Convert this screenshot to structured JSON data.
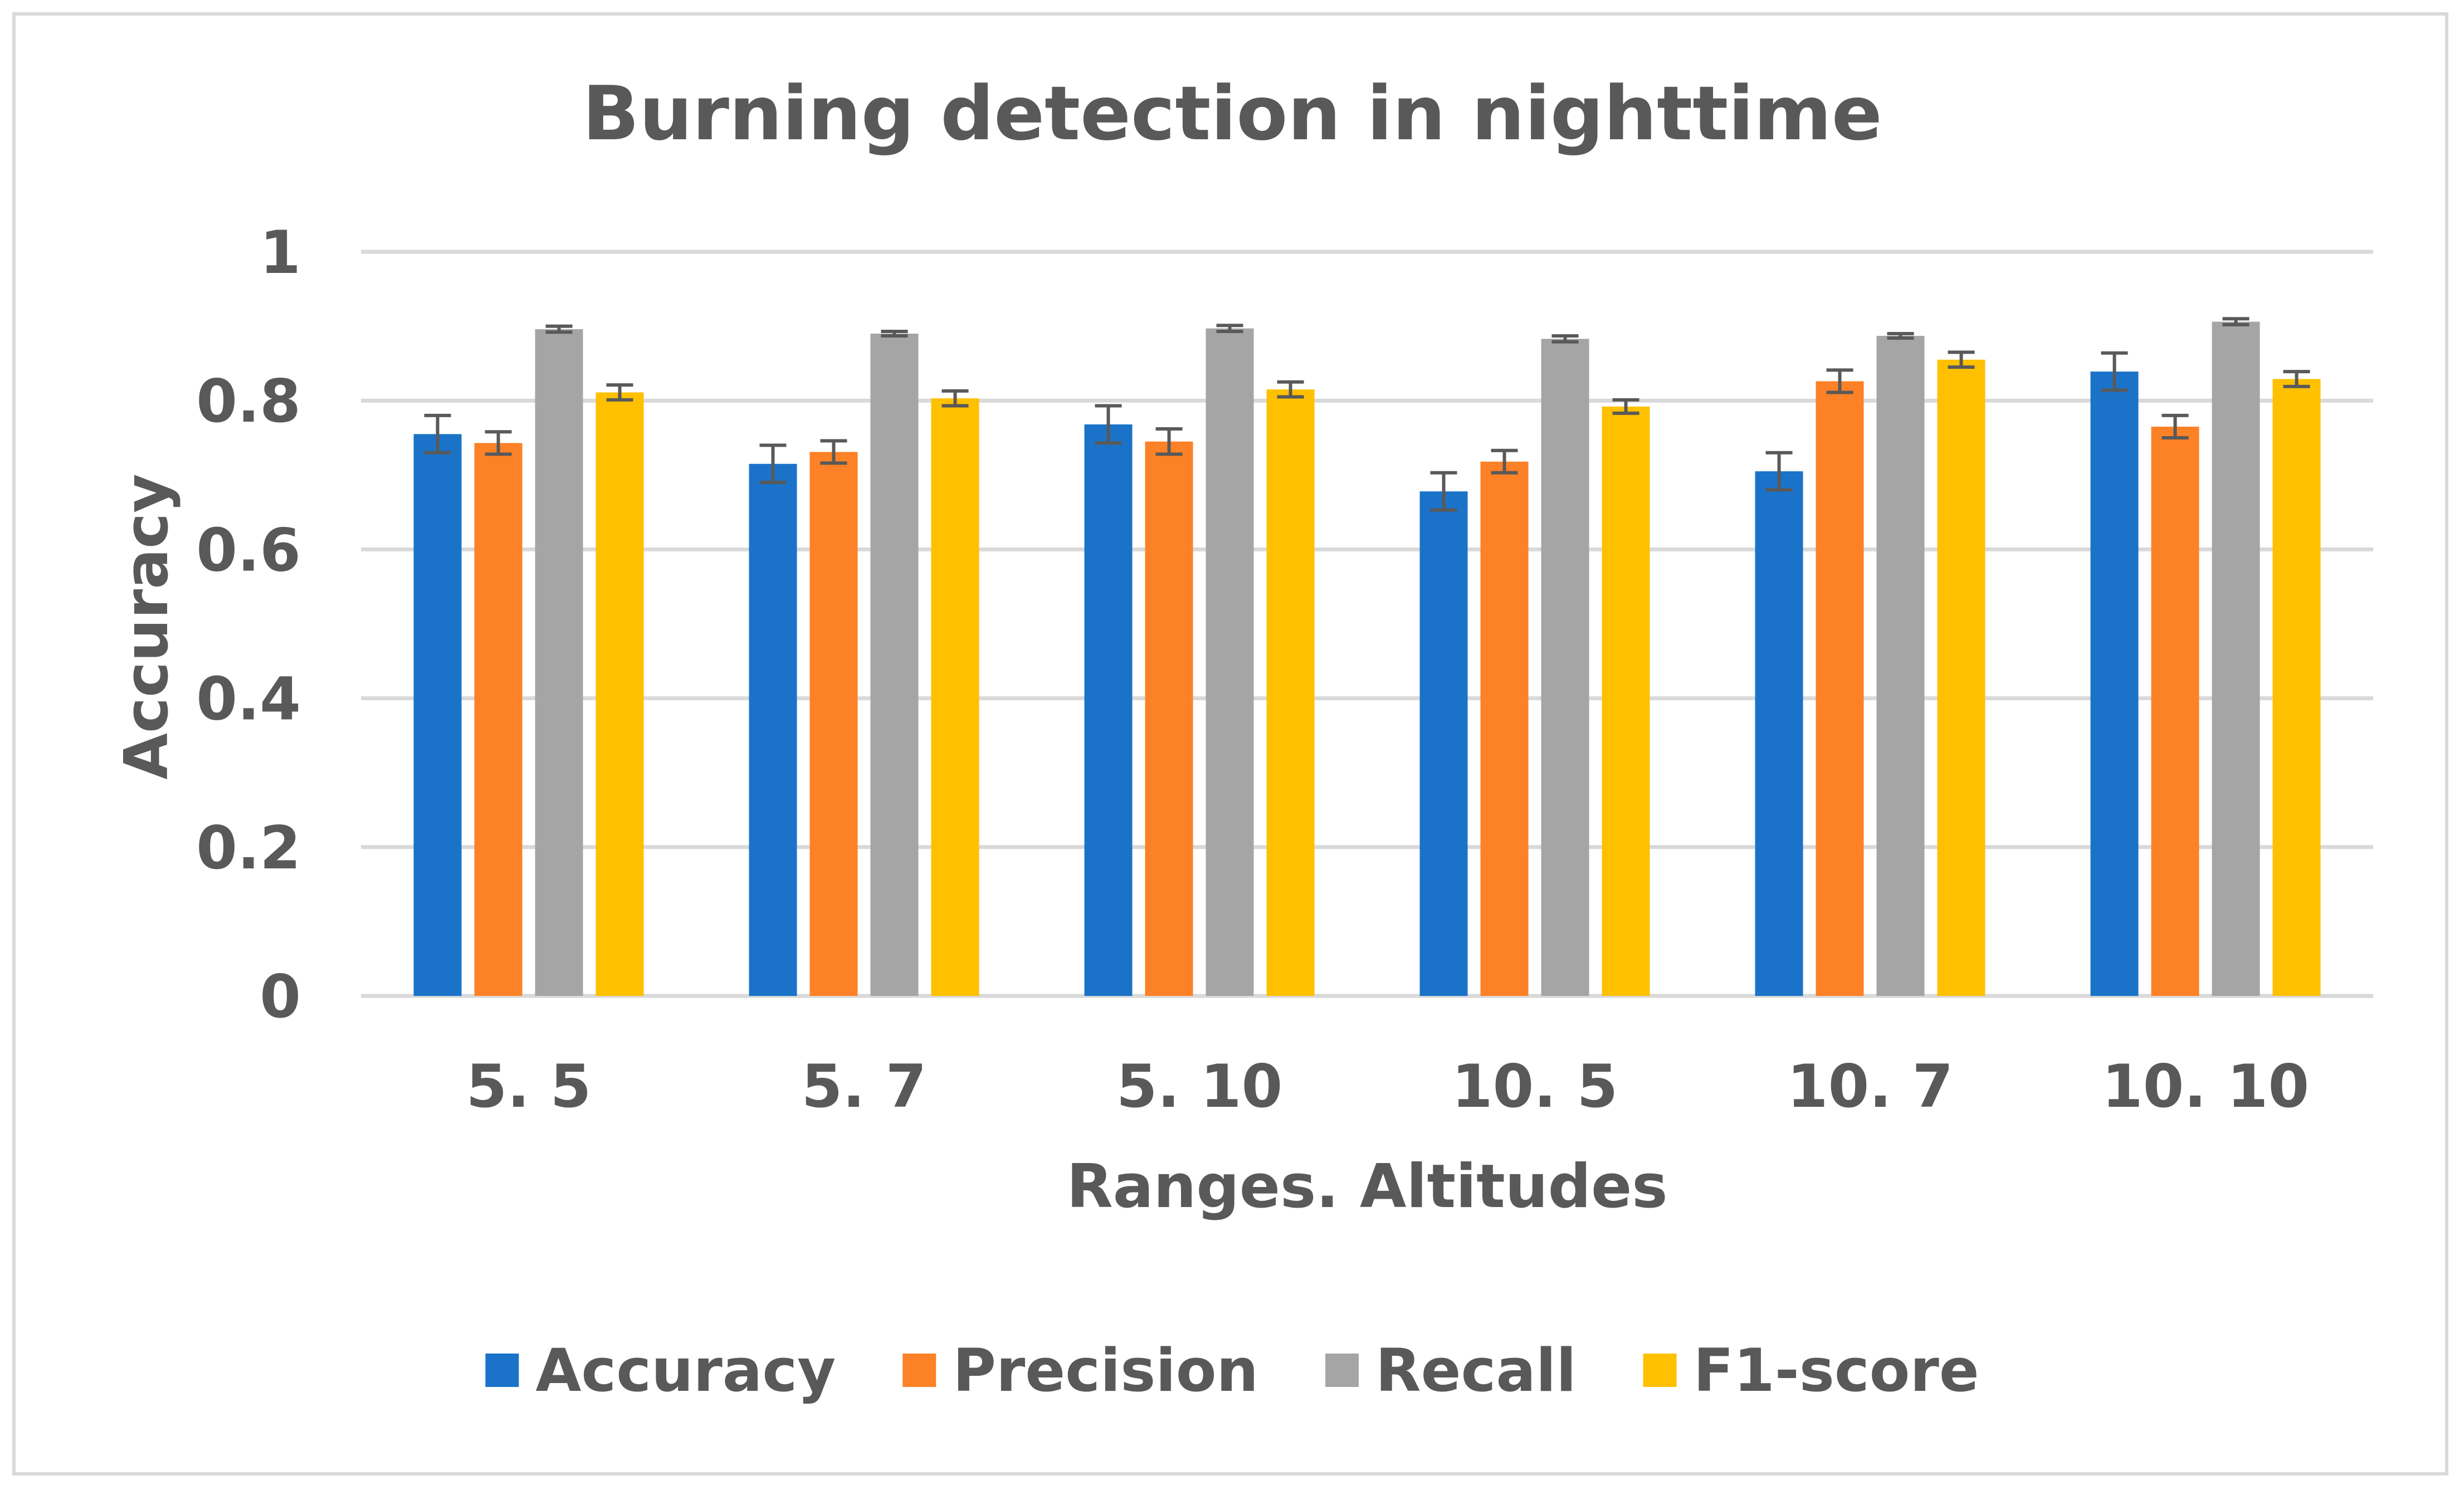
{
  "chart_data": {
    "type": "bar",
    "title": "Burning detection in nighttime",
    "xlabel": "Ranges. Altitudes",
    "ylabel": "Accuracy",
    "categories": [
      "5. 5",
      "5. 7",
      "5. 10",
      "10. 5",
      "10. 7",
      "10. 10"
    ],
    "ylim": [
      0,
      1
    ],
    "yticks": [
      "0",
      "0.2",
      "0.4",
      "0.6",
      "0.8",
      "1"
    ],
    "grid": true,
    "legend_position": "bottom",
    "series": [
      {
        "name": "Accuracy",
        "color": "#1a73c8",
        "values": [
          0.755,
          0.715,
          0.768,
          0.678,
          0.705,
          0.839
        ],
        "errors": [
          0.025,
          0.025,
          0.025,
          0.025,
          0.025,
          0.025
        ]
      },
      {
        "name": "Precision",
        "color": "#fd8126",
        "values": [
          0.743,
          0.731,
          0.745,
          0.718,
          0.826,
          0.765
        ],
        "errors": [
          0.015,
          0.015,
          0.017,
          0.015,
          0.015,
          0.015
        ]
      },
      {
        "name": "Recall",
        "color": "#a5a5a5",
        "values": [
          0.896,
          0.89,
          0.897,
          0.883,
          0.887,
          0.906
        ],
        "errors": [
          0.004,
          0.003,
          0.004,
          0.004,
          0.003,
          0.004
        ]
      },
      {
        "name": "F1-score",
        "color": "#ffc000",
        "values": [
          0.811,
          0.803,
          0.815,
          0.792,
          0.855,
          0.829
        ],
        "errors": [
          0.01,
          0.01,
          0.01,
          0.009,
          0.01,
          0.01
        ]
      }
    ]
  }
}
